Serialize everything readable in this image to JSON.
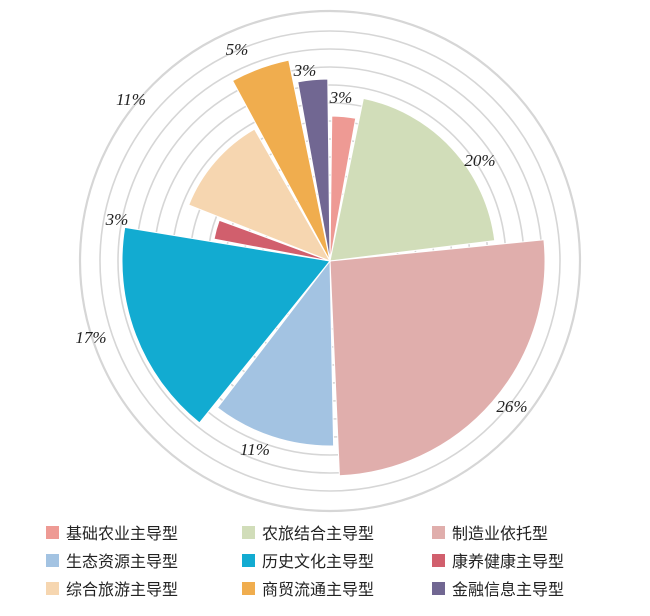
{
  "chart_data": {
    "type": "pie",
    "variant": "rose / variable-radius pie with concentric background rings",
    "title": "",
    "slices": [
      {
        "label": "基础农业主导型",
        "value": 3,
        "label_text": "3%",
        "color": "#ee9a94"
      },
      {
        "label": "农旅结合主导型",
        "value": 20,
        "label_text": "20%",
        "color": "#d1ddb9"
      },
      {
        "label": "制造业依托型",
        "value": 26,
        "label_text": "26%",
        "color": "#e0aeac"
      },
      {
        "label": "生态资源主导型",
        "value": 11,
        "label_text": "11%",
        "color": "#a3c3e2"
      },
      {
        "label": "历史文化主导型",
        "value": 17,
        "label_text": "17%",
        "color": "#12abd1"
      },
      {
        "label": "康养健康主导型",
        "value": 3,
        "label_text": "3%",
        "color": "#d15f6d"
      },
      {
        "label": "综合旅游主导型",
        "value": 11,
        "label_text": "11%",
        "color": "#f6d6b0"
      },
      {
        "label": "商贸流通主导型",
        "value": 5,
        "label_text": "5%",
        "color": "#f0ad4e"
      },
      {
        "label": "金融信息主导型",
        "value": 3,
        "label_text": "3%",
        "color": "#716792"
      }
    ],
    "legend_placement": "bottom",
    "grid": true,
    "ring_color": "#d6d6d6"
  }
}
